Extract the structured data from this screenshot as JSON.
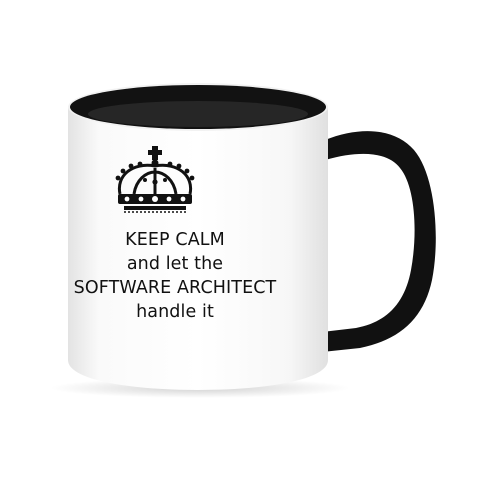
{
  "product": {
    "slogan_lines": [
      "KEEP CALM",
      "and let the",
      "SOFTWARE ARCHITECT",
      "handle it"
    ],
    "colors": {
      "mug_body": "#ffffff",
      "mug_interior": "#121212",
      "handle": "#111111",
      "print": "#111111"
    },
    "graphic_icon": "crown-icon"
  }
}
